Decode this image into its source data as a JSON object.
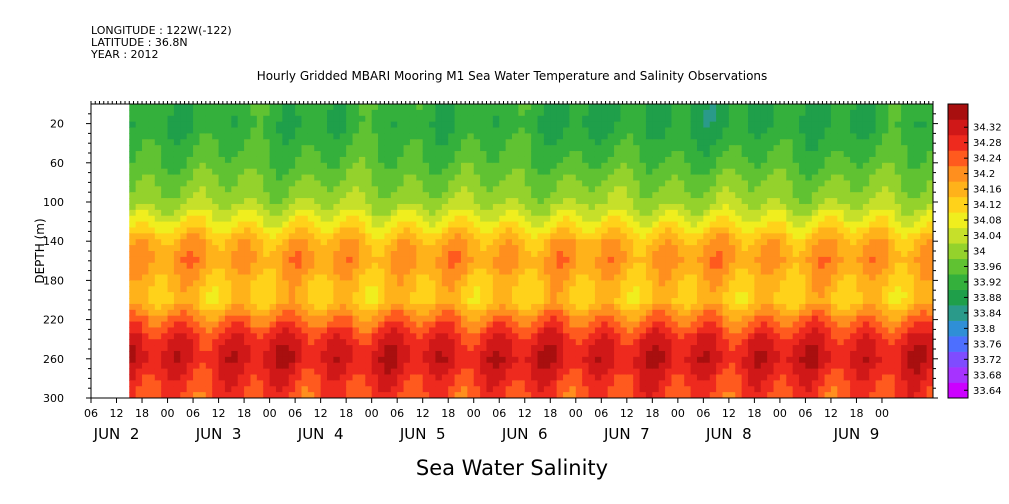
{
  "header": {
    "longitude": "LONGITUDE : 122W(-122)",
    "latitude": "LATITUDE : 36.8N",
    "year": "YEAR : 2012"
  },
  "chart_data": {
    "type": "heatmap",
    "title": "Hourly Gridded MBARI Mooring M1 Sea Water Temperature and Salinity Observations",
    "ylabel": "DEPTH (m)",
    "xlabel": "Sea Water Salinity",
    "y_ticks": [
      20,
      60,
      100,
      140,
      180,
      220,
      260,
      300
    ],
    "ylim": [
      0,
      300
    ],
    "y_inverted": true,
    "x_range_hours": [
      0,
      198
    ],
    "data_start_hour": 9,
    "hour_ticks": [
      {
        "label": "06",
        "hour": 0
      },
      {
        "label": "12",
        "hour": 6
      },
      {
        "label": "18",
        "hour": 12
      },
      {
        "label": "00",
        "hour": 18
      },
      {
        "label": "06",
        "hour": 24
      },
      {
        "label": "12",
        "hour": 30
      },
      {
        "label": "18",
        "hour": 36
      },
      {
        "label": "00",
        "hour": 42
      },
      {
        "label": "06",
        "hour": 48
      },
      {
        "label": "12",
        "hour": 54
      },
      {
        "label": "18",
        "hour": 60
      },
      {
        "label": "00",
        "hour": 66
      },
      {
        "label": "06",
        "hour": 72
      },
      {
        "label": "12",
        "hour": 78
      },
      {
        "label": "18",
        "hour": 84
      },
      {
        "label": "00",
        "hour": 90
      },
      {
        "label": "06",
        "hour": 96
      },
      {
        "label": "12",
        "hour": 102
      },
      {
        "label": "18",
        "hour": 108
      },
      {
        "label": "00",
        "hour": 114
      },
      {
        "label": "06",
        "hour": 120
      },
      {
        "label": "12",
        "hour": 126
      },
      {
        "label": "18",
        "hour": 132
      },
      {
        "label": "00",
        "hour": 138
      },
      {
        "label": "06",
        "hour": 144
      },
      {
        "label": "12",
        "hour": 150
      },
      {
        "label": "18",
        "hour": 156
      },
      {
        "label": "00",
        "hour": 162
      },
      {
        "label": "06",
        "hour": 168
      },
      {
        "label": "12",
        "hour": 174
      },
      {
        "label": "18",
        "hour": 180
      },
      {
        "label": "00",
        "hour": 186
      }
    ],
    "day_labels": [
      {
        "label": "JUN  2",
        "hour": 6
      },
      {
        "label": "JUN  3",
        "hour": 30
      },
      {
        "label": "JUN  4",
        "hour": 54
      },
      {
        "label": "JUN  5",
        "hour": 78
      },
      {
        "label": "JUN  6",
        "hour": 102
      },
      {
        "label": "JUN  7",
        "hour": 126
      },
      {
        "label": "JUN  8",
        "hour": 150
      },
      {
        "label": "JUN  9",
        "hour": 180
      }
    ],
    "colorbar": {
      "levels": [
        "33.64",
        "33.68",
        "33.72",
        "33.76",
        "33.8",
        "33.84",
        "33.88",
        "33.92",
        "33.96",
        "34",
        "34.04",
        "34.08",
        "34.12",
        "34.16",
        "34.2",
        "34.24",
        "34.28",
        "34.32"
      ],
      "colors": [
        "#cc00ff",
        "#a633ff",
        "#7f4cff",
        "#4d6fff",
        "#2f8fd6",
        "#2a9a8a",
        "#1f9f4a",
        "#34b03c",
        "#60c232",
        "#94d22c",
        "#c6e02a",
        "#f0ee1e",
        "#ffd21a",
        "#ffb21a",
        "#ff8f1e",
        "#ff5a1e",
        "#ee2a1e",
        "#d01818",
        "#a80f0f"
      ]
    },
    "profile": [
      {
        "depth": 0,
        "value": 33.9
      },
      {
        "depth": 20,
        "value": 33.89
      },
      {
        "depth": 60,
        "value": 33.93
      },
      {
        "depth": 100,
        "value": 33.99
      },
      {
        "depth": 120,
        "value": 34.06
      },
      {
        "depth": 140,
        "value": 34.14
      },
      {
        "depth": 160,
        "value": 34.17
      },
      {
        "depth": 180,
        "value": 34.13
      },
      {
        "depth": 200,
        "value": 34.11
      },
      {
        "depth": 220,
        "value": 34.2
      },
      {
        "depth": 240,
        "value": 34.27
      },
      {
        "depth": 260,
        "value": 34.3
      },
      {
        "depth": 280,
        "value": 34.26
      },
      {
        "depth": 300,
        "value": 34.23
      }
    ]
  }
}
